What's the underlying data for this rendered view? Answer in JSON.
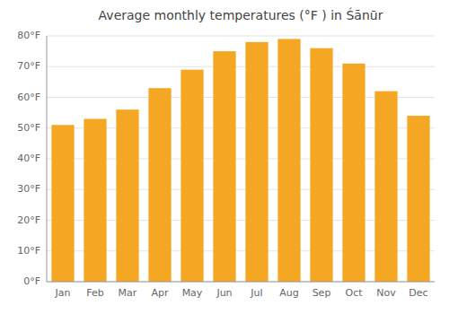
{
  "chart_data": {
    "type": "bar",
    "title": "Average monthly temperatures (°F ) in Śānūr",
    "categories": [
      "Jan",
      "Feb",
      "Mar",
      "Apr",
      "May",
      "Jun",
      "Jul",
      "Aug",
      "Sep",
      "Oct",
      "Nov",
      "Dec"
    ],
    "values": [
      51,
      53,
      56,
      63,
      69,
      75,
      78,
      79,
      76,
      71,
      62,
      54
    ],
    "color": "#F5A623",
    "ylim": [
      0,
      80
    ],
    "yticks": [
      {
        "value": 0,
        "label": "0°F"
      },
      {
        "value": 10,
        "label": "10°F"
      },
      {
        "value": 20,
        "label": "20°F"
      },
      {
        "value": 30,
        "label": "30°F"
      },
      {
        "value": 40,
        "label": "40°F"
      },
      {
        "value": 50,
        "label": "50°F"
      },
      {
        "value": 60,
        "label": "60°F"
      },
      {
        "value": 70,
        "label": "70°F"
      },
      {
        "value": 80,
        "label": "80°F"
      }
    ],
    "grid": true
  }
}
